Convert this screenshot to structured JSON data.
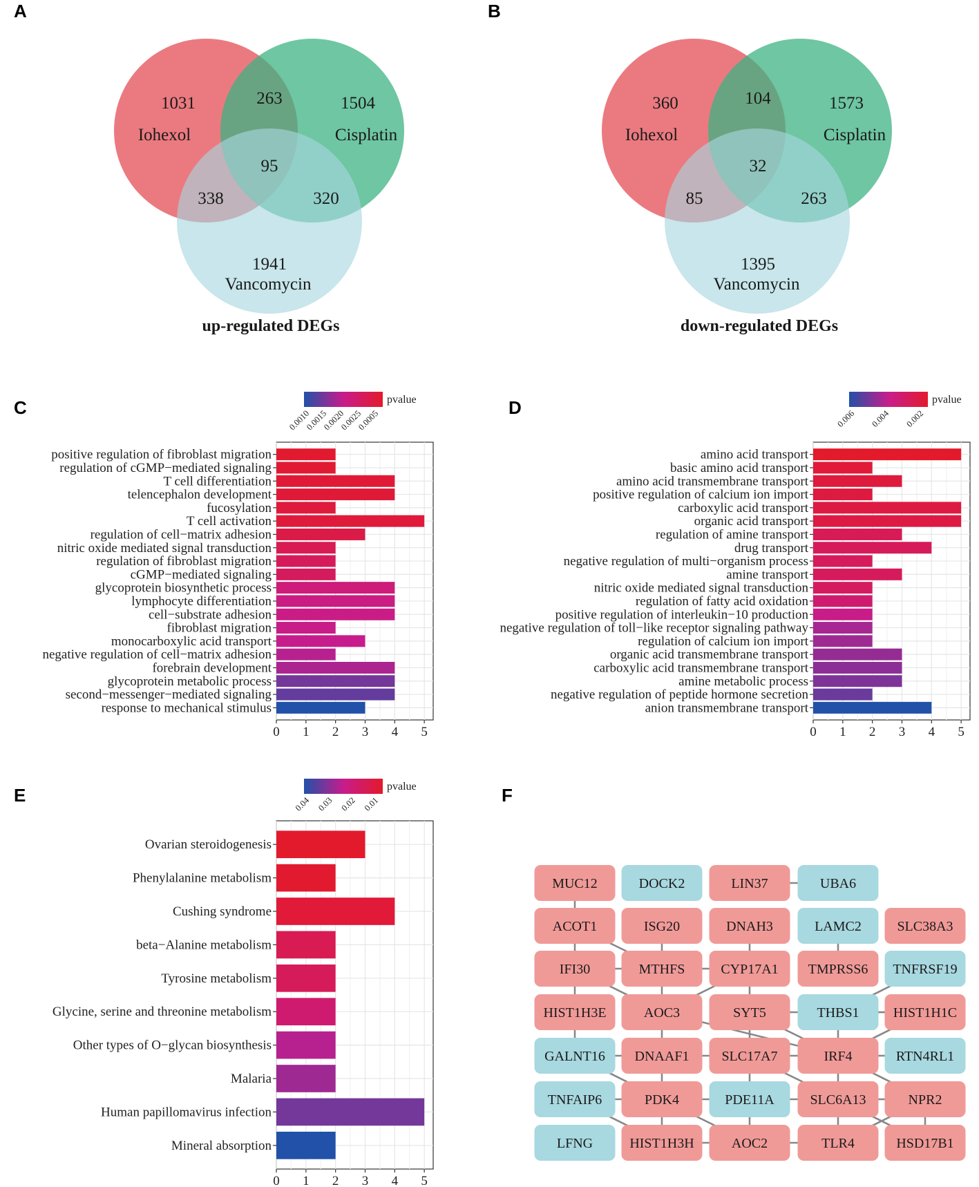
{
  "panel_labels": [
    "A",
    "B",
    "C",
    "D",
    "E",
    "F"
  ],
  "colors": {
    "venn_iohexol": "#E8686E",
    "venn_cisplatin": "#3DB383",
    "venn_vancomycin": "#A7D7DE",
    "node_pink": "#F09A98",
    "node_blue": "#A8D8E0",
    "edge": "#888888",
    "grad_low": "#E31A2C",
    "grad_mid": "#C71C8C",
    "grad_high": "#2151A8"
  },
  "chart_data": [
    {
      "type": "venn",
      "panel": "A",
      "title": "up-regulated DEGs",
      "sets": [
        "Iohexol",
        "Cisplatin",
        "Vancomycin"
      ],
      "counts": {
        "iohexol_only": "1031",
        "cisplatin_only": "1504",
        "vancomycin_only": "1941",
        "iohexol_cisplatin": "263",
        "iohexol_vancomycin": "338",
        "cisplatin_vancomycin": "320",
        "all": "95"
      }
    },
    {
      "type": "venn",
      "panel": "B",
      "title": "down-regulated DEGs",
      "sets": [
        "Iohexol",
        "Cisplatin",
        "Vancomycin"
      ],
      "counts": {
        "iohexol_only": "360",
        "cisplatin_only": "1573",
        "vancomycin_only": "1395",
        "iohexol_cisplatin": "104",
        "iohexol_vancomycin": "85",
        "cisplatin_vancomycin": "263",
        "all": "32"
      }
    },
    {
      "type": "bar",
      "panel": "C",
      "orientation": "horizontal",
      "categories": [
        "positive regulation of fibroblast migration",
        "regulation of cGMP−mediated signaling",
        "T cell differentiation",
        "telencephalon development",
        "fucosylation",
        "T cell activation",
        "regulation of cell−matrix adhesion",
        "nitric oxide mediated signal transduction",
        "regulation of fibroblast migration",
        "cGMP−mediated signaling",
        "glycoprotein biosynthetic process",
        "lymphocyte differentiation",
        "cell−substrate adhesion",
        "fibroblast migration",
        "monocarboxylic acid transport",
        "negative regulation of cell−matrix adhesion",
        "forebrain development",
        "glycoprotein metabolic process",
        "second−messenger−mediated signaling",
        "response to mechanical stimulus"
      ],
      "values": [
        2,
        2,
        4,
        4,
        2,
        5,
        3,
        2,
        2,
        2,
        4,
        4,
        4,
        2,
        3,
        2,
        4,
        4,
        4,
        3
      ],
      "color_t": [
        0.02,
        0.04,
        0.05,
        0.07,
        0.09,
        0.08,
        0.14,
        0.2,
        0.24,
        0.26,
        0.4,
        0.45,
        0.47,
        0.48,
        0.5,
        0.55,
        0.58,
        0.75,
        0.8,
        1.0
      ],
      "xticks": [
        "0",
        "1",
        "2",
        "3",
        "4",
        "5"
      ],
      "xlim": [
        0,
        5.3
      ],
      "legend": {
        "title": "pvalue",
        "ticks": [
          "0.0010",
          "0.0015",
          "0.0020",
          "0.0025",
          "0.0005"
        ]
      }
    },
    {
      "type": "bar",
      "panel": "D",
      "orientation": "horizontal",
      "categories": [
        "amino acid transport",
        "basic amino acid transport",
        "amino acid transmembrane transport",
        "positive regulation of calcium ion import",
        "carboxylic acid transport",
        "organic acid transport",
        "regulation of amine transport",
        "drug transport",
        "negative regulation of multi−organism process",
        "amine transport",
        "nitric oxide mediated signal transduction",
        "regulation of fatty acid oxidation",
        "positive regulation of interleukin−10 production",
        "negative regulation of toll−like receptor signaling pathway",
        "regulation of calcium ion import",
        "organic acid transmembrane transport",
        "carboxylic acid transmembrane transport",
        "amine metabolic process",
        "negative regulation of peptide hormone secretion",
        "anion transmembrane transport"
      ],
      "values": [
        5,
        2,
        3,
        2,
        5,
        5,
        3,
        4,
        2,
        3,
        2,
        2,
        2,
        2,
        2,
        3,
        3,
        3,
        2,
        4
      ],
      "color_t": [
        0.0,
        0.06,
        0.09,
        0.1,
        0.11,
        0.12,
        0.22,
        0.24,
        0.25,
        0.25,
        0.27,
        0.35,
        0.48,
        0.6,
        0.62,
        0.65,
        0.68,
        0.72,
        0.78,
        1.0
      ],
      "xticks": [
        "0",
        "1",
        "2",
        "3",
        "4",
        "5"
      ],
      "xlim": [
        0,
        5.3
      ],
      "legend": {
        "title": "pvalue",
        "ticks": [
          "0.006",
          "0.004",
          "0.002"
        ]
      }
    },
    {
      "type": "bar",
      "panel": "E",
      "orientation": "horizontal",
      "categories": [
        "Ovarian steroidogenesis",
        "Phenylalanine metabolism",
        "Cushing syndrome",
        "beta−Alanine metabolism",
        "Tyrosine metabolism",
        "Glycine, serine and threonine metabolism",
        "Other types of O−glycan biosynthesis",
        "Malaria",
        "Human papillomavirus infection",
        "Mineral absorption"
      ],
      "values": [
        3,
        2,
        4,
        2,
        2,
        2,
        2,
        2,
        5,
        2
      ],
      "color_t": [
        0.0,
        0.02,
        0.06,
        0.2,
        0.24,
        0.35,
        0.55,
        0.62,
        0.75,
        1.0
      ],
      "xticks": [
        "0",
        "1",
        "2",
        "3",
        "4",
        "5"
      ],
      "xlim": [
        0,
        5.3
      ],
      "legend": {
        "title": "pvalue",
        "ticks": [
          "0.04",
          "0.03",
          "0.02",
          "0.01"
        ]
      }
    },
    {
      "type": "network",
      "panel": "F",
      "rows": [
        [
          [
            "MUC12",
            "p"
          ],
          [
            "DOCK2",
            "b"
          ],
          [
            "LIN37",
            "p"
          ],
          [
            "UBA6",
            "b"
          ]
        ],
        [
          [
            "ACOT1",
            "p"
          ],
          [
            "ISG20",
            "p"
          ],
          [
            "DNAH3",
            "p"
          ],
          [
            "LAMC2",
            "b"
          ],
          [
            "SLC38A3",
            "p"
          ]
        ],
        [
          [
            "IFI30",
            "p"
          ],
          [
            "MTHFS",
            "p"
          ],
          [
            "CYP17A1",
            "p"
          ],
          [
            "TMPRSS6",
            "p"
          ],
          [
            "TNFRSF19",
            "b"
          ]
        ],
        [
          [
            "HIST1H3E",
            "p"
          ],
          [
            "AOC3",
            "p"
          ],
          [
            "SYT5",
            "p"
          ],
          [
            "THBS1",
            "b"
          ],
          [
            "HIST1H1C",
            "p"
          ]
        ],
        [
          [
            "GALNT16",
            "b"
          ],
          [
            "DNAAF1",
            "p"
          ],
          [
            "SLC17A7",
            "p"
          ],
          [
            "IRF4",
            "p"
          ],
          [
            "RTN4RL1",
            "b"
          ]
        ],
        [
          [
            "TNFAIP6",
            "b"
          ],
          [
            "PDK4",
            "p"
          ],
          [
            "PDE11A",
            "b"
          ],
          [
            "SLC6A13",
            "p"
          ],
          [
            "NPR2",
            "p"
          ]
        ],
        [
          [
            "LFNG",
            "b"
          ],
          [
            "HIST1H3H",
            "p"
          ],
          [
            "AOC2",
            "p"
          ],
          [
            "TLR4",
            "p"
          ],
          [
            "HSD17B1",
            "p"
          ]
        ]
      ],
      "edges": [
        [
          "MUC12",
          "ACOT1"
        ],
        [
          "ACOT1",
          "IFI30"
        ],
        [
          "IFI30",
          "HIST1H3E"
        ],
        [
          "HIST1H3E",
          "GALNT16"
        ],
        [
          "LIN37",
          "UBA6"
        ],
        [
          "LAMC2",
          "TMPRSS6"
        ],
        [
          "ISG20",
          "MTHFS"
        ],
        [
          "DNAH3",
          "CYP17A1"
        ],
        [
          "ACOT1",
          "MTHFS"
        ],
        [
          "CYP17A1",
          "IFI30"
        ],
        [
          "CYP17A1",
          "AOC3"
        ],
        [
          "MTHFS",
          "AOC3"
        ],
        [
          "IFI30",
          "AOC3"
        ],
        [
          "CYP17A1",
          "SYT5"
        ],
        [
          "TNFRSF19",
          "THBS1"
        ],
        [
          "HIST1H1C",
          "THBS1"
        ],
        [
          "THBS1",
          "SYT5"
        ],
        [
          "THBS1",
          "IRF4"
        ],
        [
          "THBS1",
          "HIST1H1C"
        ],
        [
          "SYT5",
          "SLC17A7"
        ],
        [
          "SYT5",
          "IRF4"
        ],
        [
          "AOC3",
          "DNAAF1"
        ],
        [
          "AOC3",
          "IRF4"
        ],
        [
          "SLC17A7",
          "DNAAF1"
        ],
        [
          "SLC17A7",
          "IRF4"
        ],
        [
          "IRF4",
          "SLC6A13"
        ],
        [
          "IRF4",
          "HIST1H1C"
        ],
        [
          "RTN4RL1",
          "IRF4"
        ],
        [
          "DNAAF1",
          "GALNT16"
        ],
        [
          "GALNT16",
          "PDK4"
        ],
        [
          "DNAAF1",
          "PDK4"
        ],
        [
          "TNFAIP6",
          "PDK4"
        ],
        [
          "PDK4",
          "PDE11A"
        ],
        [
          "PDE11A",
          "SLC6A13"
        ],
        [
          "SLC6A13",
          "NPR2"
        ],
        [
          "SLC17A7",
          "SLC6A13"
        ],
        [
          "SLC17A7",
          "PDE11A"
        ],
        [
          "IRF4",
          "NPR2"
        ],
        [
          "PDE11A",
          "AOC2"
        ],
        [
          "SLC6A13",
          "TLR4"
        ],
        [
          "HIST1H3H",
          "AOC2"
        ],
        [
          "AOC2",
          "TLR4"
        ],
        [
          "PDK4",
          "HIST1H3H"
        ],
        [
          "PDK4",
          "AOC2"
        ],
        [
          "NPR2",
          "TLR4"
        ],
        [
          "NPR2",
          "HSD17B1"
        ],
        [
          "SLC6A13",
          "HSD17B1"
        ],
        [
          "TNFAIP6",
          "HIST1H3H"
        ]
      ]
    }
  ]
}
